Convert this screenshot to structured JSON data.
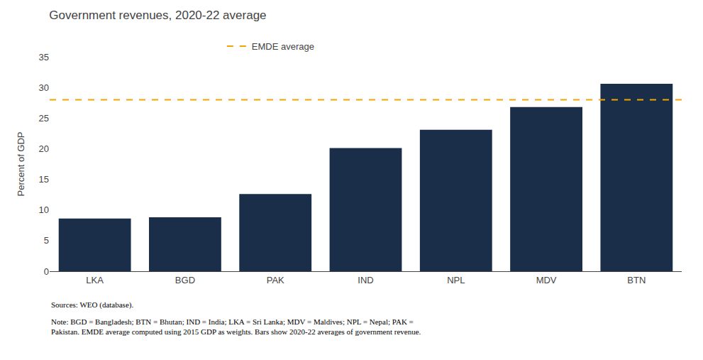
{
  "chart_data": {
    "type": "bar",
    "title": "Government revenues, 2020-22 average",
    "ylabel": "Percent of GDP",
    "categories": [
      "LKA",
      "BGD",
      "PAK",
      "IND",
      "NPL",
      "MDV",
      "BTN"
    ],
    "values": [
      8.6,
      8.8,
      12.6,
      20.1,
      23.1,
      26.8,
      30.6
    ],
    "color": "#1a2e4a",
    "reference_lines": [
      {
        "name": "EMDE average",
        "value": 28.0,
        "color": "#f0a500",
        "line_style": "dashed"
      }
    ],
    "ylim": [
      0,
      35
    ],
    "yticks": [
      0,
      5,
      10,
      15,
      20,
      25,
      30,
      35
    ],
    "grid": false,
    "legend": "top",
    "annotations": [
      "Sources: WEO (database).",
      "Note: BGD = Bangladesh; BTN = Bhutan; IND = India; LKA = Sri Lanka; MDV = Maldives; NPL = Nepal; PAK =\nPakistan. EMDE average computed using 2015 GDP as weights. Bars show 2020-22 averages of government revenue."
    ]
  }
}
